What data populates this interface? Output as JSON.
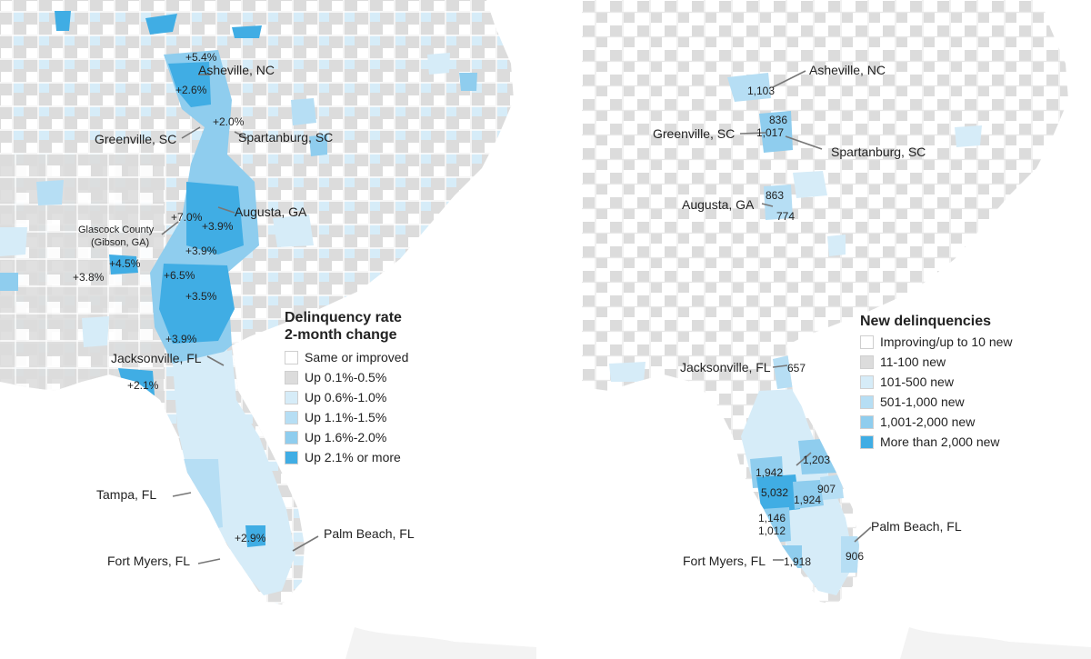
{
  "colors": {
    "land_gray": "#dcdcdc",
    "white": "#ffffff",
    "border": "#ffffff",
    "blue1": "#d6ecf8",
    "blue2": "#b6def4",
    "blue3": "#8fcdee",
    "blue4": "#40ade4",
    "ocean": "#ffffff"
  },
  "left_map": {
    "legend": {
      "title_line1": "Delinquency rate",
      "title_line2": "2-month change",
      "items": [
        {
          "label": "Same or improved",
          "color": "#ffffff"
        },
        {
          "label": "Up 0.1%-0.5%",
          "color": "#dcdcdc"
        },
        {
          "label": "Up 0.6%-1.0%",
          "color": "#d6ecf8"
        },
        {
          "label": "Up 1.1%-1.5%",
          "color": "#b6def4"
        },
        {
          "label": "Up 1.6%-2.0%",
          "color": "#8fcdee"
        },
        {
          "label": "Up 2.1% or more",
          "color": "#40ade4"
        }
      ]
    },
    "cities": {
      "asheville": "Asheville, NC",
      "greenville": "Greenville, SC",
      "spartanburg": "Spartanburg, SC",
      "augusta": "Augusta, GA",
      "glascock_line1": "Glascock County",
      "glascock_line2": "(Gibson, GA)",
      "jacksonville": "Jacksonville, FL",
      "tampa": "Tampa, FL",
      "fort_myers": "Fort Myers, FL",
      "palm_beach": "Palm Beach, FL"
    },
    "values": {
      "v1": "+5.4%",
      "v2": "+2.6%",
      "v3": "+2.0%",
      "v4": "+7.0%",
      "v5": "+3.9%",
      "v6": "+3.9%",
      "v7": "+4.5%",
      "v8": "+3.8%",
      "v9": "+6.5%",
      "v10": "+3.5%",
      "v11": "+3.9%",
      "v12": "+2.1%",
      "v13": "+2.9%"
    }
  },
  "right_map": {
    "legend": {
      "title": "New delinquencies",
      "items": [
        {
          "label": "Improving/up to 10 new",
          "color": "#ffffff"
        },
        {
          "label": "11-100 new",
          "color": "#dcdcdc"
        },
        {
          "label": "101-500 new",
          "color": "#d6ecf8"
        },
        {
          "label": "501-1,000 new",
          "color": "#b6def4"
        },
        {
          "label": "1,001-2,000 new",
          "color": "#8fcdee"
        },
        {
          "label": "More than 2,000 new",
          "color": "#40ade4"
        }
      ]
    },
    "cities": {
      "asheville": "Asheville, NC",
      "greenville": "Greenville, SC",
      "spartanburg": "Spartanburg, SC",
      "augusta": "Augusta, GA",
      "jacksonville": "Jacksonville, FL",
      "palm_beach": "Palm Beach, FL",
      "fort_myers": "Fort Myers, FL"
    },
    "values": {
      "asheville": "1,103",
      "spartanburg": "836",
      "greenville": "1,017",
      "augusta_a": "863",
      "augusta_b": "774",
      "jacksonville": "657",
      "orlando": "1,203",
      "tampa_n": "1,942",
      "tampa": "5,032",
      "lakeland": "1,924",
      "east": "907",
      "sarasota": "1,146",
      "sarasota_s": "1,012",
      "fort_myers": "1,918",
      "palm_beach": "906"
    }
  }
}
